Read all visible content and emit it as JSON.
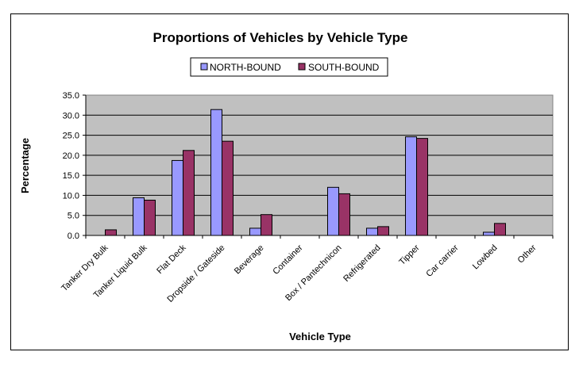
{
  "chart_data": {
    "type": "bar",
    "title": "Proportions of Vehicles by Vehicle Type",
    "xlabel": "Vehicle Type",
    "ylabel": "Percentage",
    "ylim": [
      0,
      35
    ],
    "yticks": [
      "0.0",
      "5.0",
      "10.0",
      "15.0",
      "20.0",
      "25.0",
      "30.0",
      "35.0"
    ],
    "grid": true,
    "legend_position": "top-center",
    "categories": [
      "Tanker Dry Bulk",
      "Tanker Liquid Bulk",
      "Flat Deck",
      "Dropside / Gateside",
      "Beverage",
      "Container",
      "Box / Pantechnicon",
      "Refrigerated",
      "Tipper",
      "Car carrier",
      "Lowbed",
      "Other"
    ],
    "series": [
      {
        "name": "NORTH-BOUND",
        "color": "#9999ff",
        "values": [
          0.0,
          9.4,
          18.7,
          31.4,
          1.8,
          0.0,
          12.0,
          1.8,
          24.6,
          0.0,
          0.8,
          0.0
        ]
      },
      {
        "name": "SOUTH-BOUND",
        "color": "#993366",
        "values": [
          1.4,
          8.8,
          21.2,
          23.5,
          5.2,
          0.0,
          10.4,
          2.2,
          24.2,
          0.0,
          3.0,
          0.0
        ]
      }
    ],
    "plot_background": "#c0c0c0"
  }
}
